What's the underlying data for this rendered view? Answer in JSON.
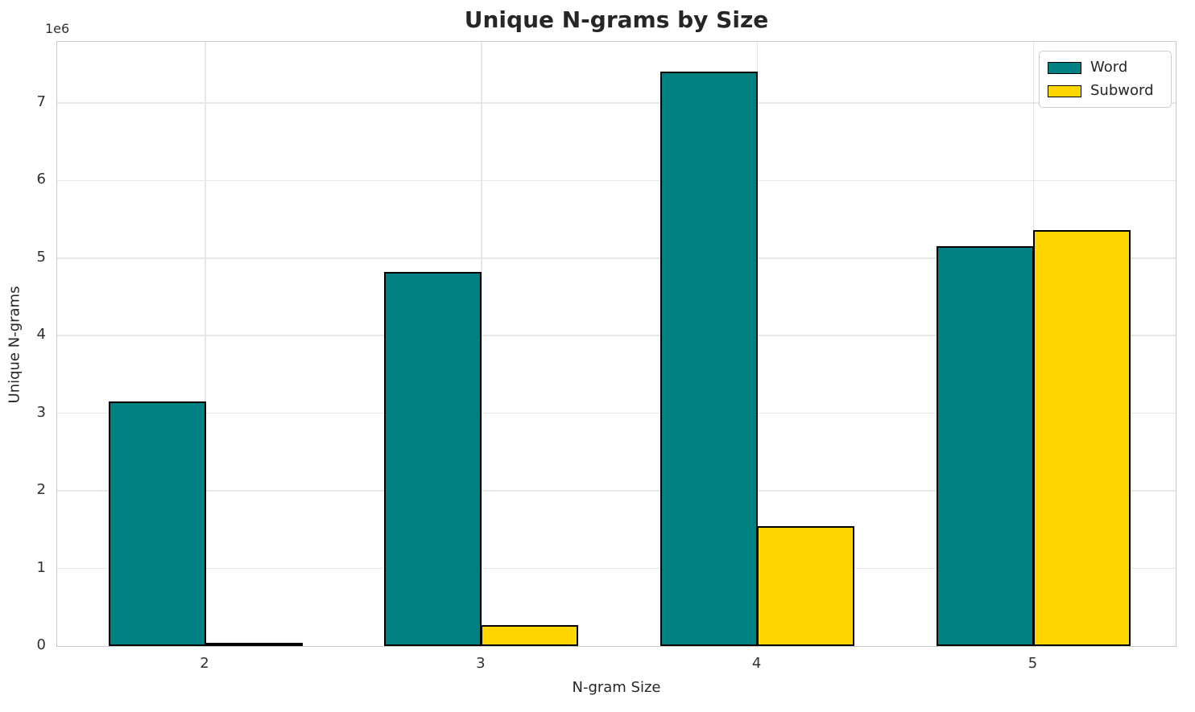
{
  "chart_data": {
    "type": "bar",
    "title": "Unique N-grams by Size",
    "xlabel": "N-gram Size",
    "ylabel": "Unique N-grams",
    "y_offset_text": "1e6",
    "categories": [
      "2",
      "3",
      "4",
      "5"
    ],
    "series": [
      {
        "name": "Word",
        "color": "#008080",
        "values": [
          3150000,
          4820000,
          7400000,
          5150000
        ]
      },
      {
        "name": "Subword",
        "color": "#ffd700",
        "values": [
          45000,
          270000,
          1540000,
          5360000
        ]
      }
    ],
    "bar_edge_color": "#000000",
    "ylim": [
      0,
      7787000
    ],
    "yticks": [
      0,
      1000000,
      2000000,
      3000000,
      4000000,
      5000000,
      6000000,
      7000000
    ],
    "ytick_labels": [
      "0",
      "1",
      "2",
      "3",
      "4",
      "5",
      "6",
      "7"
    ],
    "grid": true,
    "legend": {
      "position": "upper right"
    }
  },
  "style": {
    "grid_color": "#e7e7e7",
    "spine_color": "#c9c9c9",
    "text_color": "#262626",
    "tick_color": "#303030",
    "background": "#ffffff"
  }
}
